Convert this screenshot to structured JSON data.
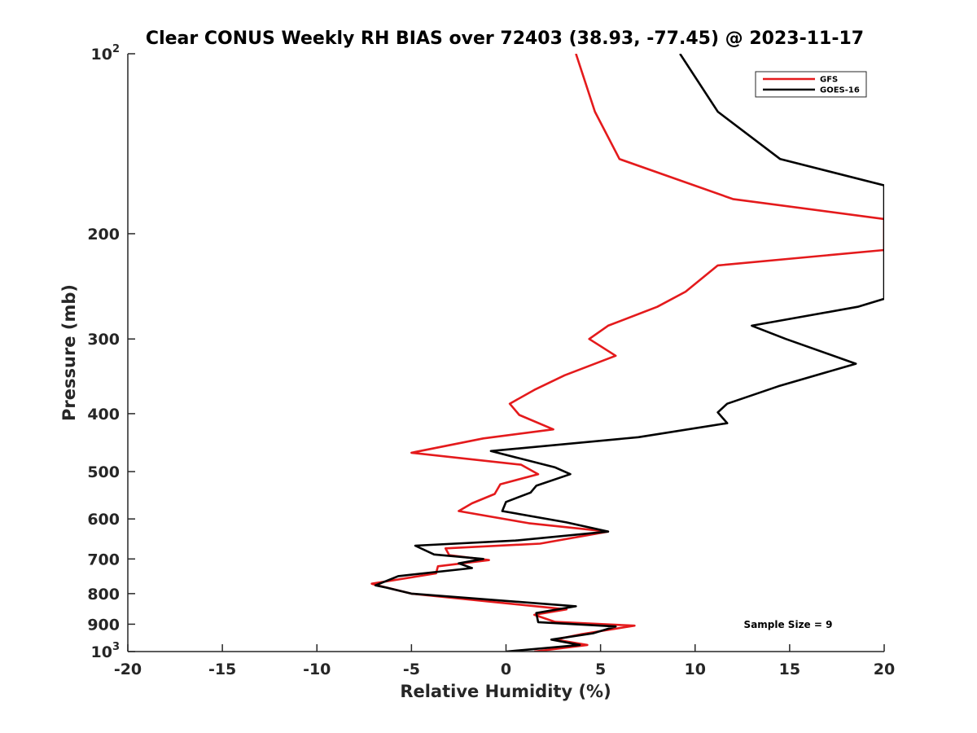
{
  "chart_data": {
    "type": "line",
    "title": "Clear CONUS Weekly RH BIAS over 72403 (38.93, -77.45) @ 2023-11-17",
    "xlabel": "Relative Humidity (%)",
    "ylabel": "Pressure (mb)",
    "xlim": [
      -20,
      20
    ],
    "ylim": [
      100,
      1000
    ],
    "yscale": "log",
    "y_reversed": true,
    "grid": false,
    "legend_position": "top-right",
    "x_ticks": [
      "-20",
      "-15",
      "-10",
      "-5",
      "0",
      "5",
      "10",
      "15",
      "20"
    ],
    "y_ticks": [
      {
        "value": 100,
        "base": "10",
        "exp": "2"
      },
      {
        "value": 200,
        "base": "200",
        "exp": ""
      },
      {
        "value": 300,
        "base": "300",
        "exp": ""
      },
      {
        "value": 400,
        "base": "400",
        "exp": ""
      },
      {
        "value": 500,
        "base": "500",
        "exp": ""
      },
      {
        "value": 600,
        "base": "600",
        "exp": ""
      },
      {
        "value": 700,
        "base": "700",
        "exp": ""
      },
      {
        "value": 800,
        "base": "800",
        "exp": ""
      },
      {
        "value": 900,
        "base": "900",
        "exp": ""
      },
      {
        "value": 1000,
        "base": "10",
        "exp": "3"
      }
    ],
    "annotation": "Sample Size = 9",
    "series": [
      {
        "name": "GFS",
        "color": "#e41a1c",
        "points": [
          [
            3.7,
            100
          ],
          [
            4.7,
            125
          ],
          [
            6.0,
            150
          ],
          [
            12.0,
            175
          ],
          [
            20.0,
            189
          ],
          [
            20.0,
            213
          ],
          [
            11.2,
            226
          ],
          [
            9.5,
            250
          ],
          [
            8.0,
            265
          ],
          [
            5.4,
            285
          ],
          [
            4.4,
            300
          ],
          [
            5.8,
            320
          ],
          [
            3.1,
            345
          ],
          [
            1.5,
            365
          ],
          [
            0.2,
            385
          ],
          [
            0.7,
            402
          ],
          [
            2.5,
            425
          ],
          [
            -1.2,
            440
          ],
          [
            -5.0,
            465
          ],
          [
            0.8,
            487
          ],
          [
            1.7,
            505
          ],
          [
            -0.3,
            525
          ],
          [
            -0.6,
            545
          ],
          [
            -1.8,
            565
          ],
          [
            -2.5,
            582
          ],
          [
            1.2,
            610
          ],
          [
            5.4,
            630
          ],
          [
            1.8,
            660
          ],
          [
            -3.2,
            672
          ],
          [
            -3.0,
            690
          ],
          [
            -0.9,
            703
          ],
          [
            -3.6,
            720
          ],
          [
            -3.7,
            740
          ],
          [
            -7.1,
            770
          ],
          [
            -6.8,
            775
          ],
          [
            -5.0,
            800
          ],
          [
            3.2,
            850
          ],
          [
            1.5,
            868
          ],
          [
            2.6,
            892
          ],
          [
            6.8,
            905
          ],
          [
            4.0,
            935
          ],
          [
            2.6,
            955
          ],
          [
            4.3,
            975
          ],
          [
            1.5,
            1000
          ]
        ]
      },
      {
        "name": "GOES-16",
        "color": "#000000",
        "points": [
          [
            9.2,
            100
          ],
          [
            11.2,
            125
          ],
          [
            14.5,
            150
          ],
          [
            20.0,
            166
          ],
          [
            20.0,
            257
          ],
          [
            18.6,
            265
          ],
          [
            13.0,
            285
          ],
          [
            14.8,
            300
          ],
          [
            18.5,
            330
          ],
          [
            14.4,
            360
          ],
          [
            11.7,
            385
          ],
          [
            11.2,
            398
          ],
          [
            11.7,
            415
          ],
          [
            7.0,
            438
          ],
          [
            -0.8,
            462
          ],
          [
            2.6,
            492
          ],
          [
            3.4,
            505
          ],
          [
            1.6,
            528
          ],
          [
            1.3,
            542
          ],
          [
            0.0,
            562
          ],
          [
            -0.2,
            582
          ],
          [
            3.2,
            608
          ],
          [
            5.4,
            630
          ],
          [
            0.5,
            652
          ],
          [
            -4.8,
            665
          ],
          [
            -3.8,
            688
          ],
          [
            -1.2,
            700
          ],
          [
            -2.5,
            712
          ],
          [
            -1.8,
            725
          ],
          [
            -5.7,
            748
          ],
          [
            -6.9,
            775
          ],
          [
            -6.3,
            782
          ],
          [
            -5.0,
            800
          ],
          [
            3.7,
            840
          ],
          [
            1.6,
            862
          ],
          [
            1.7,
            893
          ],
          [
            5.8,
            908
          ],
          [
            4.6,
            932
          ],
          [
            2.4,
            955
          ],
          [
            3.9,
            975
          ],
          [
            0.0,
            1000
          ]
        ]
      }
    ]
  }
}
